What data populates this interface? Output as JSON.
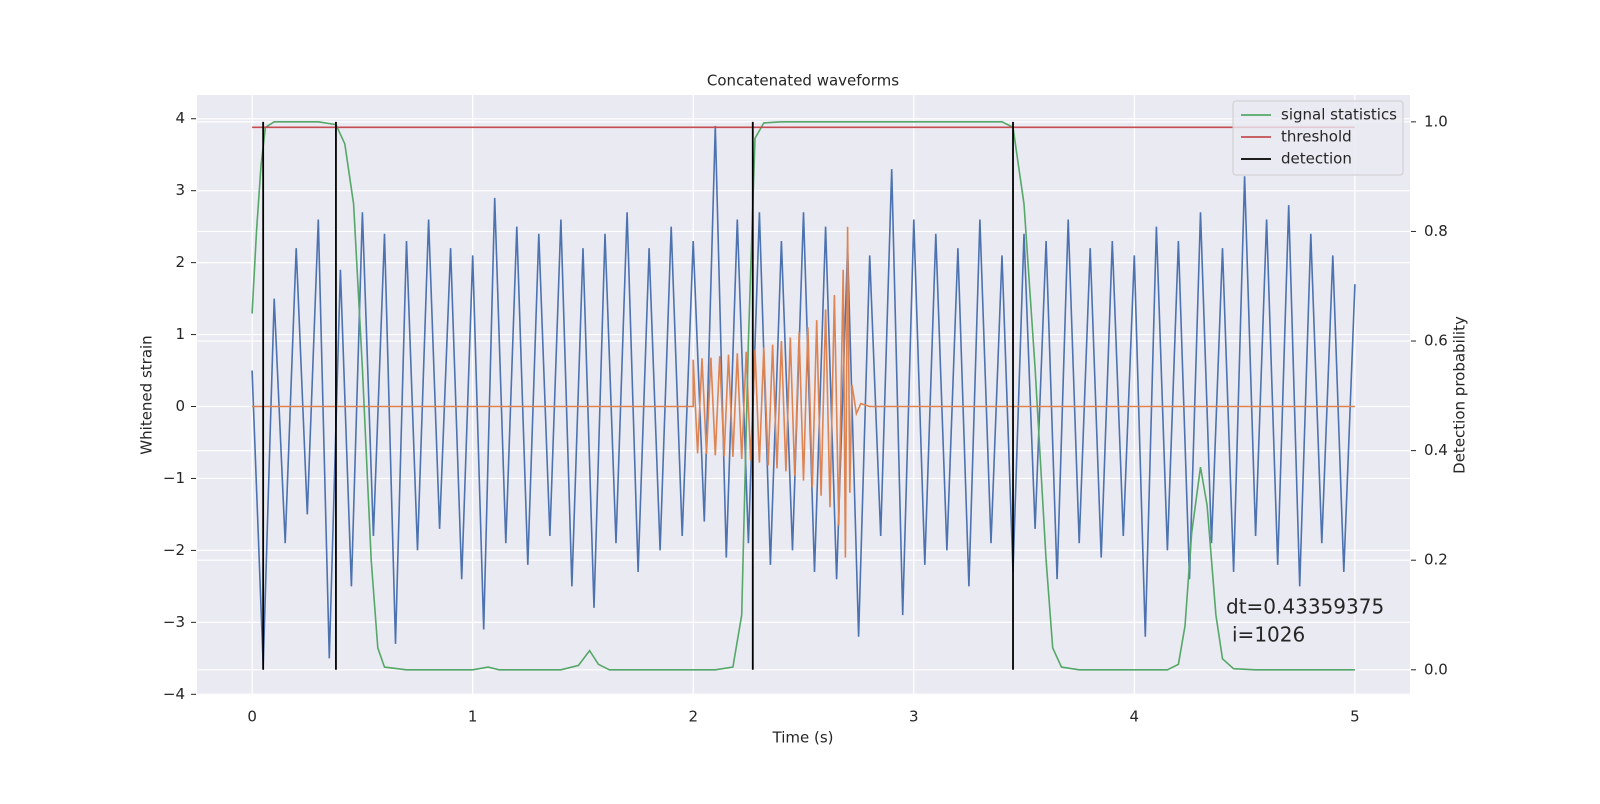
{
  "chart_data": {
    "type": "line",
    "title": "Concatenated waveforms",
    "xlabel": "Time (s)",
    "ylabel": "Whitened strain",
    "y2label": "Detection probability",
    "xlim": [
      -0.25,
      5.25
    ],
    "ylim": [
      -4.01,
      4.33
    ],
    "y2lim": [
      -0.046,
      1.049
    ],
    "xticks": [
      0,
      1,
      2,
      3,
      4,
      5
    ],
    "yticks": [
      {
        "value": -4,
        "label": "−4"
      },
      {
        "value": -3,
        "label": "−3"
      },
      {
        "value": -2,
        "label": "−2"
      },
      {
        "value": -1,
        "label": "−1"
      },
      0,
      1,
      2,
      3,
      4
    ],
    "y2ticks": [
      {
        "value": 0,
        "label": "0.0"
      },
      0.2,
      0.4,
      0.6,
      0.8,
      {
        "value": 1,
        "label": "1.0"
      }
    ],
    "grid": true,
    "legend_loc": "upper right",
    "annotation": [
      "dt=0.43359375",
      "i=1026"
    ],
    "series": [
      {
        "color": "#4c72b0",
        "x": [
          0,
          0.05,
          0.1,
          0.15,
          0.2,
          0.25,
          0.3,
          0.35,
          0.4,
          0.45,
          0.5,
          0.55,
          0.6,
          0.65,
          0.7,
          0.75,
          0.8,
          0.85,
          0.9,
          0.95,
          1,
          1.05,
          1.1,
          1.15,
          1.2,
          1.25,
          1.3,
          1.35,
          1.4,
          1.45,
          1.5,
          1.55,
          1.6,
          1.65,
          1.7,
          1.75,
          1.8,
          1.85,
          1.9,
          1.95,
          2,
          2.05,
          2.1,
          2.15,
          2.2,
          2.25,
          2.3,
          2.35,
          2.4,
          2.45,
          2.5,
          2.55,
          2.6,
          2.65,
          2.7,
          2.75,
          2.8,
          2.85,
          2.9,
          2.95,
          3,
          3.05,
          3.1,
          3.15,
          3.2,
          3.25,
          3.3,
          3.35,
          3.4,
          3.45,
          3.5,
          3.55,
          3.6,
          3.65,
          3.7,
          3.75,
          3.8,
          3.85,
          3.9,
          3.95,
          4,
          4.05,
          4.1,
          4.15,
          4.2,
          4.25,
          4.3,
          4.35,
          4.4,
          4.45,
          4.5,
          4.55,
          4.6,
          4.65,
          4.7,
          4.75,
          4.8,
          4.85,
          4.9,
          4.95,
          5
        ],
        "values": [
          0.5,
          -3.6,
          1.5,
          -1.9,
          2.2,
          -1.5,
          2.6,
          -3.5,
          1.9,
          -2.5,
          2.7,
          -1.8,
          2.4,
          -3.3,
          2.3,
          -2.0,
          2.6,
          -1.7,
          2.2,
          -2.4,
          2.1,
          -3.1,
          2.9,
          -1.9,
          2.5,
          -2.2,
          2.4,
          -1.8,
          2.6,
          -2.5,
          2.2,
          -2.8,
          2.4,
          -1.9,
          2.7,
          -2.3,
          2.2,
          -2.0,
          2.5,
          -1.8,
          2.3,
          -1.6,
          3.9,
          -2.1,
          2.6,
          -1.9,
          2.7,
          -2.2,
          2.3,
          -2.0,
          2.7,
          -2.3,
          2.5,
          -2.4,
          2.2,
          -3.2,
          2.1,
          -1.8,
          3.3,
          -2.9,
          2.6,
          -2.2,
          2.4,
          -2.0,
          2.2,
          -2.5,
          2.6,
          -1.9,
          2.1,
          -2.3,
          2.4,
          -1.7,
          2.3,
          -2.4,
          2.6,
          -1.9,
          2.2,
          -2.1,
          2.3,
          -1.8,
          2.1,
          -3.2,
          2.5,
          -2.0,
          2.3,
          -2.4,
          2.7,
          -1.9,
          2.2,
          -2.3,
          3.2,
          -1.8,
          2.6,
          -2.2,
          2.8,
          -2.5,
          2.4,
          -1.9,
          2.1,
          -2.3,
          1.7
        ]
      },
      {
        "color": "#dd8452",
        "x": [
          0,
          2.0,
          2.0,
          2.02,
          2.04,
          2.06,
          2.08,
          2.1,
          2.12,
          2.14,
          2.16,
          2.18,
          2.2,
          2.22,
          2.24,
          2.26,
          2.28,
          2.3,
          2.32,
          2.34,
          2.36,
          2.38,
          2.4,
          2.42,
          2.44,
          2.46,
          2.48,
          2.5,
          2.52,
          2.54,
          2.56,
          2.58,
          2.6,
          2.62,
          2.64,
          2.66,
          2.68,
          2.69,
          2.7,
          2.71,
          2.72,
          2.74,
          2.76,
          2.8,
          2.9,
          5
        ],
        "values": [
          0,
          0,
          0.65,
          -0.65,
          0.67,
          -0.66,
          0.68,
          -0.68,
          0.7,
          -0.69,
          0.72,
          -0.7,
          0.74,
          -0.73,
          0.76,
          -0.75,
          0.79,
          -0.78,
          0.82,
          -0.82,
          0.86,
          -0.86,
          0.91,
          -0.9,
          0.96,
          -0.96,
          1.03,
          -1.03,
          1.1,
          -1.12,
          1.2,
          -1.24,
          1.35,
          -1.4,
          1.55,
          -1.65,
          1.9,
          -2.1,
          2.5,
          -1.2,
          0.3,
          -0.1,
          0.04,
          0,
          0,
          0
        ]
      },
      {
        "name": "signal statistics",
        "color": "#55a868",
        "axis": "y2",
        "x": [
          0,
          0.02,
          0.04,
          0.06,
          0.1,
          0.3,
          0.38,
          0.42,
          0.46,
          0.5,
          0.54,
          0.57,
          0.6,
          0.7,
          1.0,
          1.07,
          1.12,
          1.4,
          1.48,
          1.53,
          1.57,
          1.62,
          2.1,
          2.18,
          2.22,
          2.25,
          2.28,
          2.32,
          2.4,
          3.4,
          3.45,
          3.5,
          3.55,
          3.6,
          3.63,
          3.67,
          3.75,
          4.15,
          4.2,
          4.23,
          4.26,
          4.3,
          4.33,
          4.37,
          4.4,
          4.45,
          4.55,
          5
        ],
        "values": [
          0.65,
          0.8,
          0.92,
          0.99,
          1,
          1,
          0.995,
          0.96,
          0.85,
          0.55,
          0.2,
          0.04,
          0.005,
          0,
          0,
          0.005,
          0,
          0,
          0.008,
          0.035,
          0.01,
          0,
          0,
          0.005,
          0.1,
          0.6,
          0.97,
          0.998,
          1,
          1,
          0.99,
          0.85,
          0.55,
          0.2,
          0.04,
          0.005,
          0,
          0,
          0.01,
          0.08,
          0.25,
          0.37,
          0.3,
          0.1,
          0.02,
          0.002,
          0,
          0
        ]
      },
      {
        "name": "threshold",
        "color": "#c44e52",
        "axis": "y2",
        "x": [
          0,
          5
        ],
        "values": [
          0.99,
          0.99
        ]
      },
      {
        "name": "detection",
        "color": "#000000",
        "axis": "y2",
        "type": "vlines",
        "x": [
          0.05,
          0.38,
          2.27,
          3.45
        ],
        "span": [
          0,
          1
        ]
      }
    ]
  }
}
